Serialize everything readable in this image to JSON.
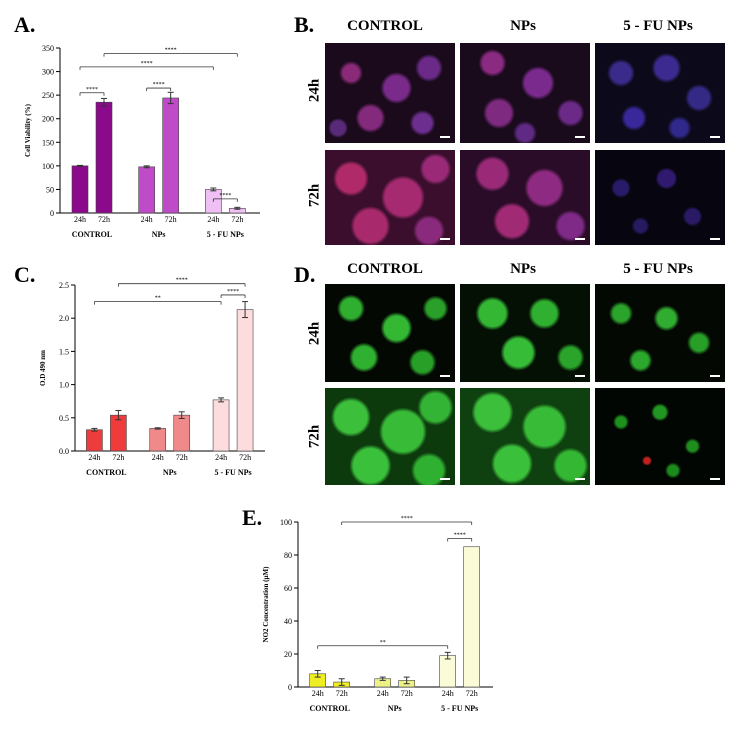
{
  "panels": {
    "A": {
      "letter": "A."
    },
    "B": {
      "letter": "B."
    },
    "C": {
      "letter": "C."
    },
    "D": {
      "letter": "D."
    },
    "E": {
      "letter": "E."
    }
  },
  "micrographs": {
    "B": {
      "columns": [
        "CONTROL",
        "NPs",
        "5 - FU NPs"
      ],
      "rows": [
        "24h",
        "72h"
      ]
    },
    "D": {
      "columns": [
        "CONTROL",
        "NPs",
        "5 - FU NPs"
      ],
      "rows": [
        "24h",
        "72h"
      ]
    }
  },
  "colors": {
    "A": [
      "#8b0a8b",
      "#8b0a8b",
      "#c04bc8",
      "#c04bc8",
      "#f0c0f4",
      "#f0c0f4"
    ],
    "C": [
      "#ee3b3b",
      "#ee3b3b",
      "#f08a8a",
      "#f08a8a",
      "#fcdcdc",
      "#fcdcdc"
    ],
    "E": [
      "#eeee22",
      "#eeee22",
      "#eef088",
      "#eef088",
      "#fbfbd8",
      "#fbfbd8"
    ]
  },
  "chart_data": [
    {
      "id": "A",
      "type": "bar",
      "ylabel": "Cell Viability (%)",
      "ylim": [
        0,
        350
      ],
      "yticks": [
        "0",
        "50",
        "100",
        "150",
        "200",
        "250",
        "300",
        "350"
      ],
      "bar_labels": [
        "24h",
        "72h",
        "24h",
        "72h",
        "24h",
        "72h"
      ],
      "groups": [
        "CONTROL",
        "NPs",
        "5 - FU NPs"
      ],
      "values": [
        100,
        235,
        98,
        244,
        50,
        10
      ],
      "errors": [
        1,
        8,
        2,
        12,
        3,
        2
      ],
      "brackets": [
        {
          "from": 0,
          "to": 1,
          "level": 255,
          "label": "****"
        },
        {
          "from": 2,
          "to": 3,
          "level": 265,
          "label": "****"
        },
        {
          "from": 4,
          "to": 5,
          "level": 30,
          "label": "****"
        },
        {
          "from": 0,
          "to": 4,
          "level": 310,
          "label": "****"
        },
        {
          "from": 1,
          "to": 5,
          "level": 338,
          "label": "****"
        }
      ]
    },
    {
      "id": "C",
      "type": "bar",
      "ylabel": "O.D 490 nm",
      "ylim": [
        0,
        2.5
      ],
      "yticks": [
        "0.0",
        "0.5",
        "1.0",
        "1.5",
        "2.0",
        "2.5"
      ],
      "bar_labels": [
        "24h",
        "72h",
        "24h",
        "72h",
        "24h",
        "72h"
      ],
      "groups": [
        "CONTROL",
        "NPs",
        "5 - FU NPs"
      ],
      "values": [
        0.32,
        0.54,
        0.34,
        0.54,
        0.77,
        2.13
      ],
      "errors": [
        0.02,
        0.07,
        0.01,
        0.05,
        0.03,
        0.12
      ],
      "brackets": [
        {
          "from": 4,
          "to": 5,
          "level": 2.35,
          "label": "****"
        },
        {
          "from": 0,
          "to": 4,
          "level": 2.25,
          "label": "**"
        },
        {
          "from": 1,
          "to": 5,
          "level": 2.52,
          "label": "****"
        }
      ]
    },
    {
      "id": "E",
      "type": "bar",
      "ylabel": "NO2 Concentration (µM)",
      "ylim": [
        0,
        100
      ],
      "yticks": [
        "0",
        "20",
        "40",
        "60",
        "80",
        "100"
      ],
      "bar_labels": [
        "24h",
        "72h",
        "24h",
        "72h",
        "24h",
        "72h"
      ],
      "groups": [
        "CONTROL",
        "NPs",
        "5 - FU NPs"
      ],
      "values": [
        8,
        3,
        5,
        4,
        19,
        85
      ],
      "errors": [
        2,
        2,
        1,
        2,
        2,
        0
      ],
      "brackets": [
        {
          "from": 4,
          "to": 5,
          "level": 90,
          "label": "****"
        },
        {
          "from": 0,
          "to": 4,
          "level": 25,
          "label": "**"
        },
        {
          "from": 1,
          "to": 5,
          "level": 100,
          "label": "****"
        }
      ]
    }
  ]
}
